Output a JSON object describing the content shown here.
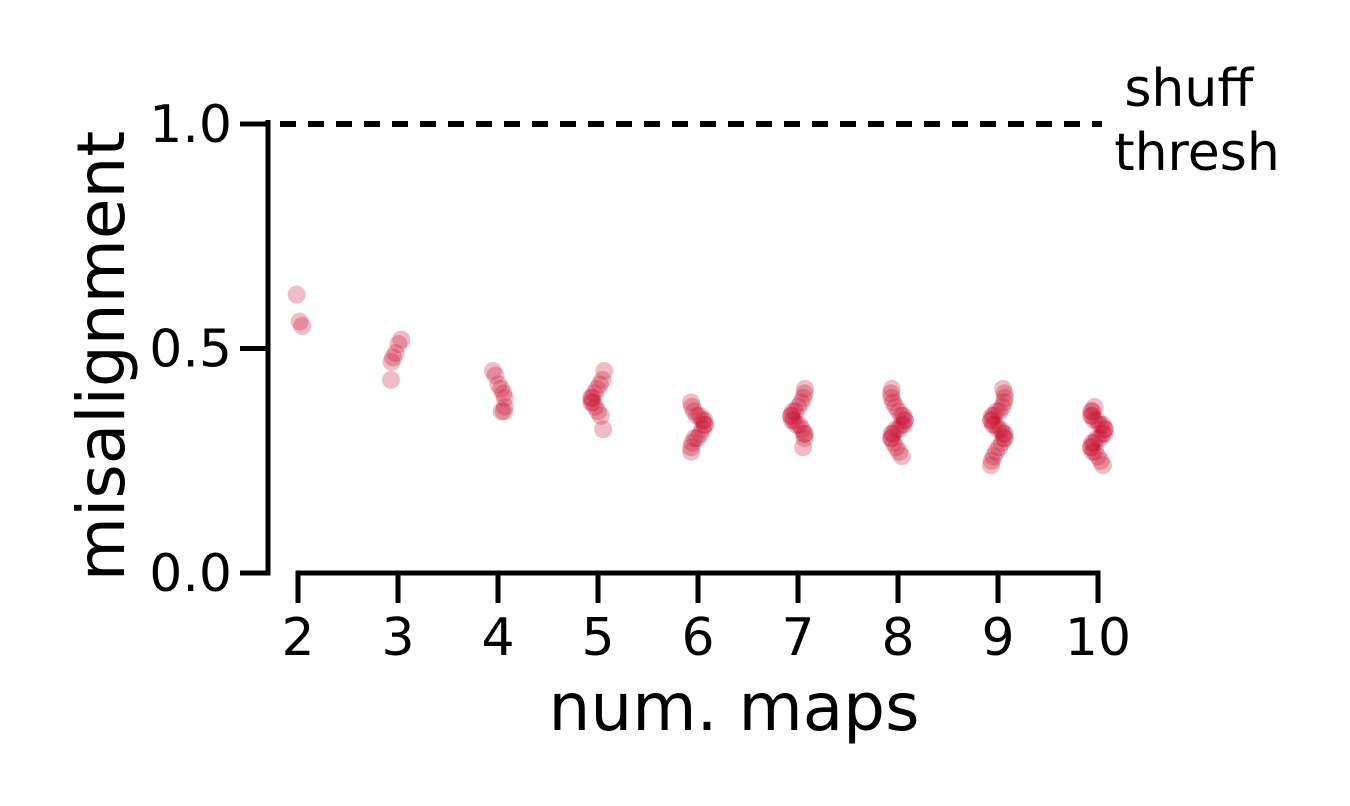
{
  "chart_data": {
    "type": "scatter",
    "xlabel": "num. maps",
    "ylabel": "misalignment",
    "x_ticks": [
      "2",
      "3",
      "4",
      "5",
      "6",
      "7",
      "8",
      "9",
      "10"
    ],
    "y_ticks": [
      "0.0",
      "0.5",
      "1.0"
    ],
    "ylim": [
      0,
      1.0
    ],
    "grid": false,
    "point_color": "#c8102e",
    "threshold": {
      "value": 1.0,
      "label_line1": "shuff",
      "label_line2": "thresh",
      "style": "dashed",
      "color": "#000000"
    },
    "series": [
      {
        "x": 2,
        "values": [
          0.62,
          0.56,
          0.55
        ]
      },
      {
        "x": 3,
        "values": [
          0.52,
          0.51,
          0.49,
          0.48,
          0.47,
          0.43
        ]
      },
      {
        "x": 4,
        "values": [
          0.45,
          0.44,
          0.42,
          0.41,
          0.4,
          0.39,
          0.37,
          0.36,
          0.36
        ]
      },
      {
        "x": 5,
        "values": [
          0.45,
          0.43,
          0.42,
          0.41,
          0.4,
          0.39,
          0.39,
          0.38,
          0.38,
          0.37,
          0.36,
          0.35,
          0.32
        ]
      },
      {
        "x": 6,
        "values": [
          0.38,
          0.37,
          0.36,
          0.35,
          0.35,
          0.34,
          0.34,
          0.33,
          0.33,
          0.32,
          0.31,
          0.3,
          0.3,
          0.29,
          0.28,
          0.27
        ]
      },
      {
        "x": 7,
        "values": [
          0.41,
          0.4,
          0.39,
          0.38,
          0.37,
          0.36,
          0.36,
          0.35,
          0.35,
          0.34,
          0.34,
          0.33,
          0.33,
          0.32,
          0.31,
          0.31,
          0.3,
          0.28
        ]
      },
      {
        "x": 8,
        "values": [
          0.41,
          0.4,
          0.39,
          0.38,
          0.37,
          0.36,
          0.35,
          0.35,
          0.34,
          0.34,
          0.33,
          0.33,
          0.32,
          0.32,
          0.31,
          0.31,
          0.3,
          0.3,
          0.29,
          0.28,
          0.27,
          0.26
        ]
      },
      {
        "x": 9,
        "values": [
          0.41,
          0.4,
          0.39,
          0.38,
          0.37,
          0.36,
          0.36,
          0.35,
          0.35,
          0.34,
          0.34,
          0.33,
          0.33,
          0.32,
          0.32,
          0.31,
          0.31,
          0.3,
          0.3,
          0.29,
          0.28,
          0.27,
          0.26,
          0.25,
          0.24
        ]
      },
      {
        "x": 10,
        "values": [
          0.37,
          0.36,
          0.36,
          0.35,
          0.35,
          0.34,
          0.34,
          0.33,
          0.33,
          0.32,
          0.32,
          0.31,
          0.31,
          0.3,
          0.3,
          0.29,
          0.29,
          0.28,
          0.28,
          0.27,
          0.27,
          0.26,
          0.25,
          0.24
        ]
      }
    ]
  }
}
